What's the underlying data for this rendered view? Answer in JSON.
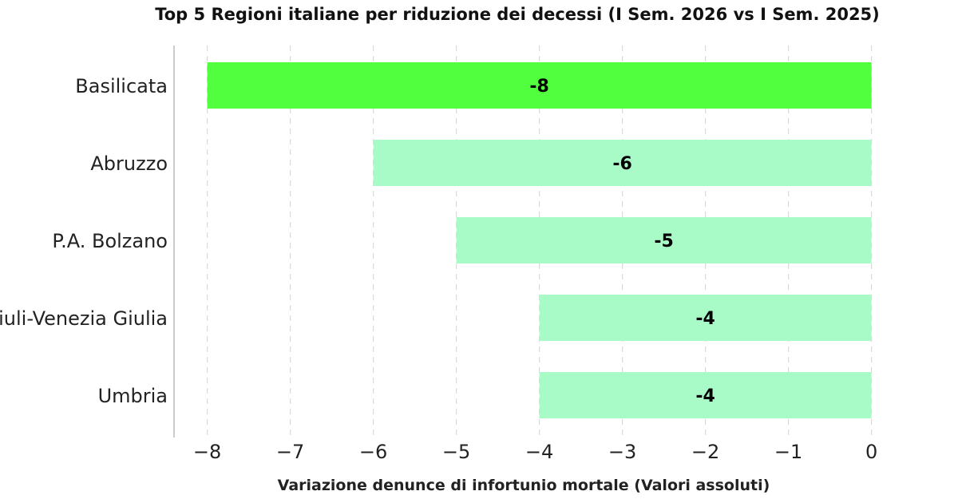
{
  "chart_data": {
    "type": "bar",
    "orientation": "horizontal",
    "title": "Top 5 Regioni italiane per riduzione dei decessi (I Sem. 2026 vs I Sem. 2025)",
    "xlabel": "Variazione denunce di infortunio mortale (Valori assoluti)",
    "ylabel": "",
    "categories": [
      "Basilicata",
      "Abruzzo",
      "P.A. Bolzano",
      "Friuli-Venezia Giulia",
      "Umbria"
    ],
    "values": [
      -8,
      -6,
      -5,
      -4,
      -4
    ],
    "value_labels": [
      "-8",
      "-6",
      "-5",
      "-4",
      "-4"
    ],
    "xlim": [
      -8.4,
      0.1
    ],
    "xticks": [
      -8,
      -7,
      -6,
      -5,
      -4,
      -3,
      -2,
      -1,
      0
    ],
    "xtick_labels": [
      "−8",
      "−7",
      "−6",
      "−5",
      "−4",
      "−3",
      "−2",
      "−1",
      "0"
    ],
    "grid": "x-axis dashed",
    "legend": "none",
    "colors": {
      "highlight": "#52ff3f",
      "default": "#a8fbc7",
      "grid": "#d9d9d9",
      "spine": "#cccccc"
    },
    "highlight_index": 0
  }
}
